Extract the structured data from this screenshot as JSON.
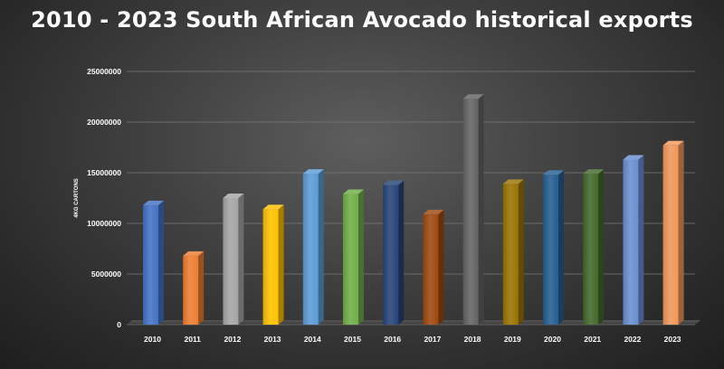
{
  "chart_data": {
    "type": "bar",
    "title": "2010 - 2023 South African Avocado historical exports",
    "xlabel": "",
    "ylabel": "4KG CARTONS",
    "categories": [
      "2010",
      "2011",
      "2012",
      "2013",
      "2014",
      "2015",
      "2016",
      "2017",
      "2018",
      "2019",
      "2020",
      "2021",
      "2022",
      "2023"
    ],
    "values": [
      11800000,
      6800000,
      12500000,
      11400000,
      14900000,
      12900000,
      13800000,
      10900000,
      22300000,
      13900000,
      14800000,
      14900000,
      16300000,
      17700000
    ],
    "ylim": [
      0,
      25000000
    ],
    "yticks": [
      0,
      5000000,
      10000000,
      15000000,
      20000000,
      25000000
    ],
    "grid": true,
    "legend": "none",
    "bar_colors": [
      "#4472c4",
      "#ed7d31",
      "#a5a5a5",
      "#ffc000",
      "#5b9bd5",
      "#70ad47",
      "#264478",
      "#9e480e",
      "#636363",
      "#997300",
      "#255e91",
      "#43682b",
      "#698ed0",
      "#f1975a"
    ]
  }
}
